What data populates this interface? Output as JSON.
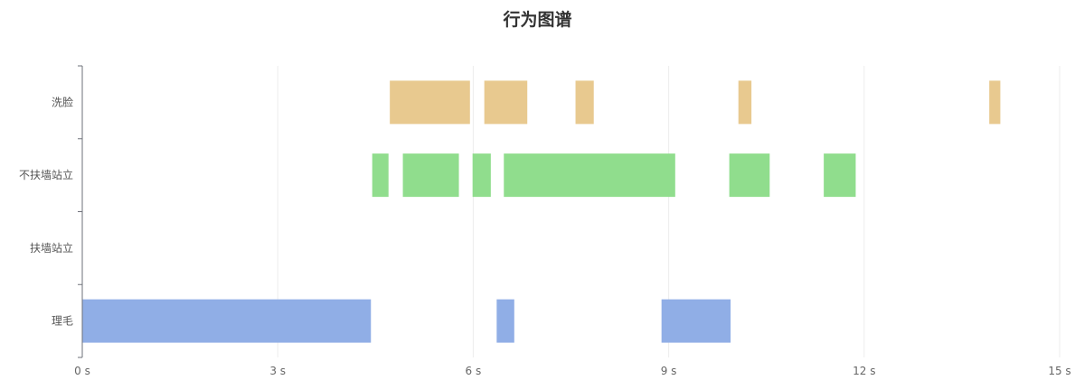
{
  "chart_data": {
    "type": "timeline",
    "title": "行为图谱",
    "x_tick_values": [
      0,
      3,
      6,
      9,
      12,
      15
    ],
    "x_tick_labels": [
      "0 s",
      "3 s",
      "6 s",
      "9 s",
      "12 s",
      "15 s"
    ],
    "xlim": [
      0,
      15
    ],
    "grid": true,
    "categories": [
      "洗脸",
      "不扶墙站立",
      "扶墙站立",
      "理毛"
    ],
    "colors": {
      "洗脸": "#e8c98f",
      "不扶墙站立": "#90dd8d",
      "扶墙站立": "#90aee6",
      "理毛": "#90aee6"
    },
    "segments": [
      {
        "category": "洗脸",
        "start": 4.72,
        "end": 5.95
      },
      {
        "category": "洗脸",
        "start": 6.17,
        "end": 6.83
      },
      {
        "category": "洗脸",
        "start": 7.57,
        "end": 7.85
      },
      {
        "category": "洗脸",
        "start": 10.07,
        "end": 10.27
      },
      {
        "category": "洗脸",
        "start": 13.92,
        "end": 14.09
      },
      {
        "category": "不扶墙站立",
        "start": 4.45,
        "end": 4.7
      },
      {
        "category": "不扶墙站立",
        "start": 4.92,
        "end": 5.78
      },
      {
        "category": "不扶墙站立",
        "start": 5.99,
        "end": 6.27
      },
      {
        "category": "不扶墙站立",
        "start": 6.47,
        "end": 9.1
      },
      {
        "category": "不扶墙站立",
        "start": 9.93,
        "end": 10.55
      },
      {
        "category": "不扶墙站立",
        "start": 11.38,
        "end": 11.87
      },
      {
        "category": "理毛",
        "start": 0.0,
        "end": 4.43
      },
      {
        "category": "理毛",
        "start": 6.36,
        "end": 6.63
      },
      {
        "category": "理毛",
        "start": 8.89,
        "end": 9.95
      }
    ]
  }
}
